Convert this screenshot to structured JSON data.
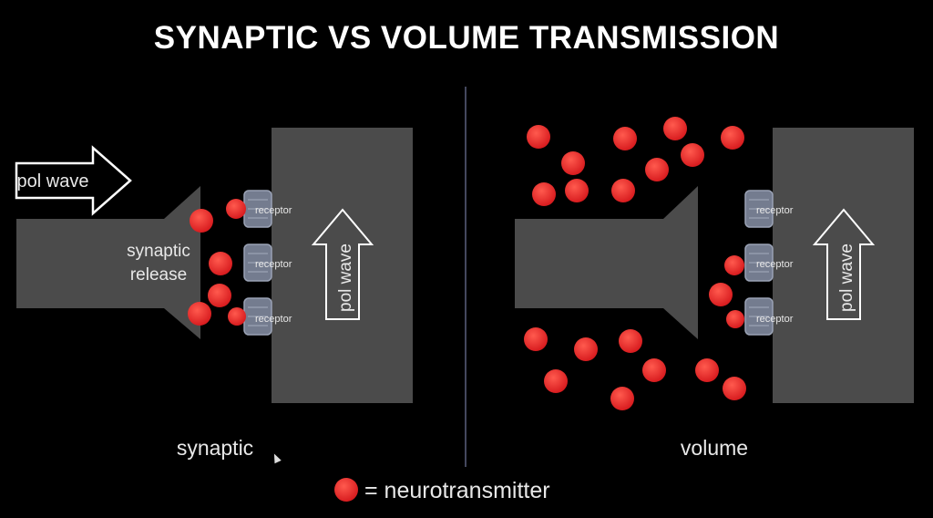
{
  "title": "SYNAPTIC VS VOLUME TRANSMISSION",
  "synaptic": {
    "caption": "synaptic",
    "wave_label": "pol wave",
    "release_label_line1": "synaptic",
    "release_label_line2": "release",
    "receptor_labels": [
      "receptor",
      "receptor",
      "receptor"
    ],
    "post_wave_label": "pol wave"
  },
  "volume": {
    "caption": "volume",
    "receptor_labels": [
      "receptor",
      "receptor",
      "receptor"
    ],
    "post_wave_label": "pol wave"
  },
  "legend": {
    "text": "= neurotransmitter"
  },
  "colors": {
    "background": "#000000",
    "neuron": "#4a4a4a",
    "receptor": "#7a8294",
    "neurotransmitter": "#e8262a",
    "text": "#ffffff",
    "divider": "#6a6f8a"
  },
  "icons": {
    "cursor": "mouse-pointer-icon"
  }
}
